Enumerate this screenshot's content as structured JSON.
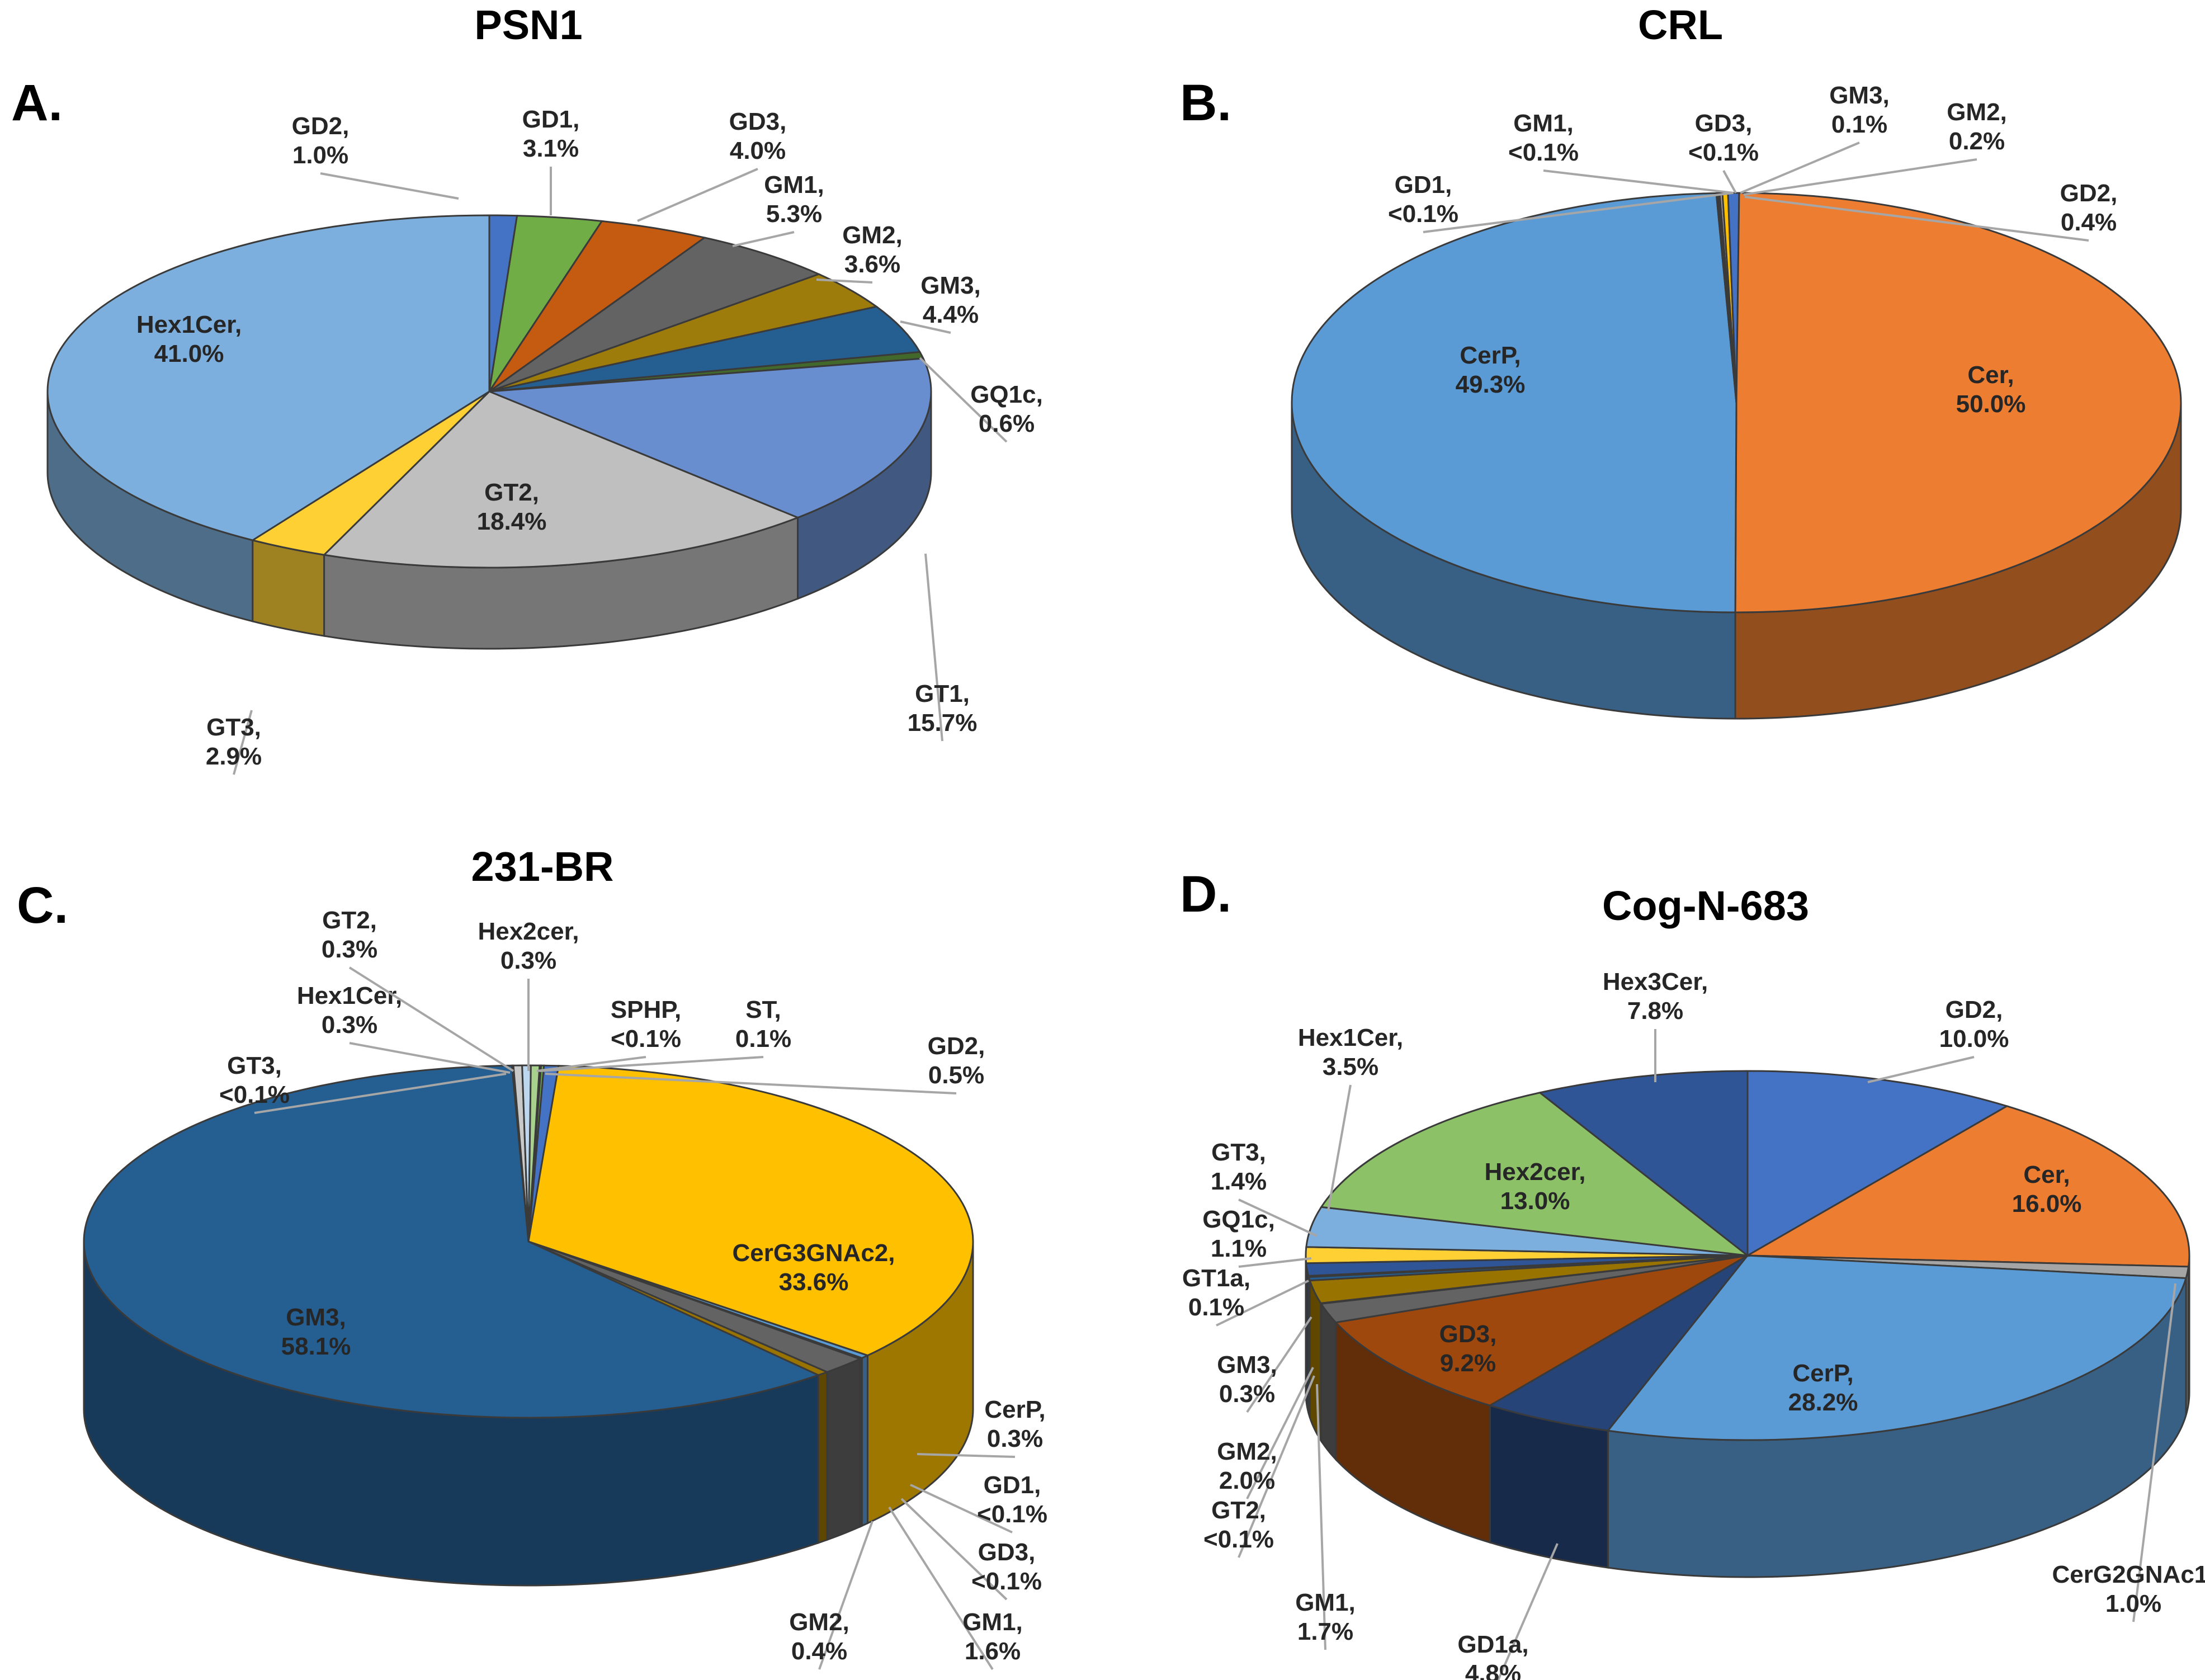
{
  "chart_data": [
    {
      "type": "pie",
      "panel": "A.",
      "title": "PSN1",
      "slices": [
        {
          "label": "GD2",
          "value": 1.0,
          "text": "1.0%",
          "color": "#4472c4"
        },
        {
          "label": "GD1",
          "value": 3.1,
          "text": "3.1%",
          "color": "#70ad47"
        },
        {
          "label": "GD3",
          "value": 4.0,
          "text": "4.0%",
          "color": "#c55a11"
        },
        {
          "label": "GM1",
          "value": 5.3,
          "text": "5.3%",
          "color": "#636363"
        },
        {
          "label": "GM2",
          "value": 3.6,
          "text": "3.6%",
          "color": "#9e7c0c"
        },
        {
          "label": "GM3",
          "value": 4.4,
          "text": "4.4%",
          "color": "#255e91"
        },
        {
          "label": "GQ1c",
          "value": 0.6,
          "text": "0.6%",
          "color": "#43682b"
        },
        {
          "label": "GT1",
          "value": 15.7,
          "text": "15.7%",
          "color": "#698ed0"
        },
        {
          "label": "GT2",
          "value": 18.4,
          "text": "18.4%",
          "color": "#bfbfbf"
        },
        {
          "label": "GT3",
          "value": 2.9,
          "text": "2.9%",
          "color": "#ffd034"
        },
        {
          "label": "Hex1Cer",
          "value": 41.0,
          "text": "41.0%",
          "color": "#7cafdd"
        }
      ]
    },
    {
      "type": "pie",
      "panel": "B.",
      "title": "CRL",
      "slices": [
        {
          "label": "GM3",
          "value": 0.1,
          "text": "0.1%",
          "color": "#a5a5a5"
        },
        {
          "label": "GM2",
          "value": 0.2,
          "text": "0.2%",
          "color": "#ffc000"
        },
        {
          "label": "GD2",
          "value": 0.4,
          "text": "0.4%",
          "color": "#4472c4"
        },
        {
          "label": "Cer",
          "value": 50.0,
          "text": "50.0%",
          "color": "#ed7d31"
        },
        {
          "label": "CerP",
          "value": 49.3,
          "text": "49.3%",
          "color": "#5b9bd5"
        },
        {
          "label": "GD1",
          "value": 0.04,
          "text": "<0.1%",
          "color": "#70ad47"
        },
        {
          "label": "GM1",
          "value": 0.04,
          "text": "<0.1%",
          "color": "#264478"
        },
        {
          "label": "GD3",
          "value": 0.04,
          "text": "<0.1%",
          "color": "#9e480e"
        }
      ]
    },
    {
      "type": "pie",
      "panel": "C.",
      "title": "231-BR",
      "slices": [
        {
          "label": "SPHP",
          "value": 0.05,
          "text": "<0.1%",
          "color": "#a5a5a5"
        },
        {
          "label": "ST",
          "value": 0.1,
          "text": "0.1%",
          "color": "#70ad47"
        },
        {
          "label": "GD2",
          "value": 0.5,
          "text": "0.5%",
          "color": "#4472c4"
        },
        {
          "label": "CerG3GNAc2",
          "value": 33.6,
          "text": "33.6%",
          "color": "#ffc000"
        },
        {
          "label": "CerP",
          "value": 0.3,
          "text": "0.3%",
          "color": "#5b9bd5"
        },
        {
          "label": "GD1",
          "value": 0.05,
          "text": "<0.1%",
          "color": "#43682b"
        },
        {
          "label": "GD3",
          "value": 0.05,
          "text": "<0.1%",
          "color": "#9e480e"
        },
        {
          "label": "GM1",
          "value": 1.6,
          "text": "1.6%",
          "color": "#636363"
        },
        {
          "label": "GM2",
          "value": 0.4,
          "text": "0.4%",
          "color": "#997300"
        },
        {
          "label": "GM3",
          "value": 58.1,
          "text": "58.1%",
          "color": "#255e91"
        },
        {
          "label": "GT3",
          "value": 0.05,
          "text": "<0.1%",
          "color": "#7f7f7f"
        },
        {
          "label": "Hex1Cer",
          "value": 0.3,
          "text": "0.3%",
          "color": "#c9c9c9"
        },
        {
          "label": "GT2",
          "value": 0.3,
          "text": "0.3%",
          "color": "#bdd7ee"
        },
        {
          "label": "Hex2cer",
          "value": 0.3,
          "text": "0.3%",
          "color": "#a9d18e"
        }
      ]
    },
    {
      "type": "pie",
      "panel": "D.",
      "title": "Cog-N-683",
      "slices": [
        {
          "label": "GD2",
          "value": 10.0,
          "text": "10.0%",
          "color": "#4472c4"
        },
        {
          "label": "Cer",
          "value": 16.0,
          "text": "16.0%",
          "color": "#ed7d31"
        },
        {
          "label": "CerG2GNAc1",
          "value": 1.0,
          "text": "1.0%",
          "color": "#a5a5a5"
        },
        {
          "label": "CerP",
          "value": 28.2,
          "text": "28.2%",
          "color": "#5b9bd5"
        },
        {
          "label": "GD1a",
          "value": 4.8,
          "text": "4.8%",
          "color": "#264478"
        },
        {
          "label": "GD3",
          "value": 9.2,
          "text": "9.2%",
          "color": "#9e480e"
        },
        {
          "label": "GM1",
          "value": 1.7,
          "text": "1.7%",
          "color": "#636363"
        },
        {
          "label": "GT2",
          "value": 0.05,
          "text": "<0.1%",
          "color": "#7f7f7f"
        },
        {
          "label": "GM2",
          "value": 2.0,
          "text": "2.0%",
          "color": "#997300"
        },
        {
          "label": "GM3",
          "value": 0.3,
          "text": "0.3%",
          "color": "#255e91"
        },
        {
          "label": "GT1a",
          "value": 0.1,
          "text": "0.1%",
          "color": "#43682b"
        },
        {
          "label": "GQ1c",
          "value": 1.1,
          "text": "1.1%",
          "color": "#2f5597"
        },
        {
          "label": "GT3",
          "value": 1.4,
          "text": "1.4%",
          "color": "#ffd034"
        },
        {
          "label": "Hex1Cer",
          "value": 3.5,
          "text": "3.5%",
          "color": "#7cafdd"
        },
        {
          "label": "Hex2cer",
          "value": 13.0,
          "text": "13.0%",
          "color": "#8cc168"
        },
        {
          "label": "Hex3Cer",
          "value": 7.8,
          "text": "7.8%",
          "color": "#2f5597"
        }
      ]
    }
  ]
}
